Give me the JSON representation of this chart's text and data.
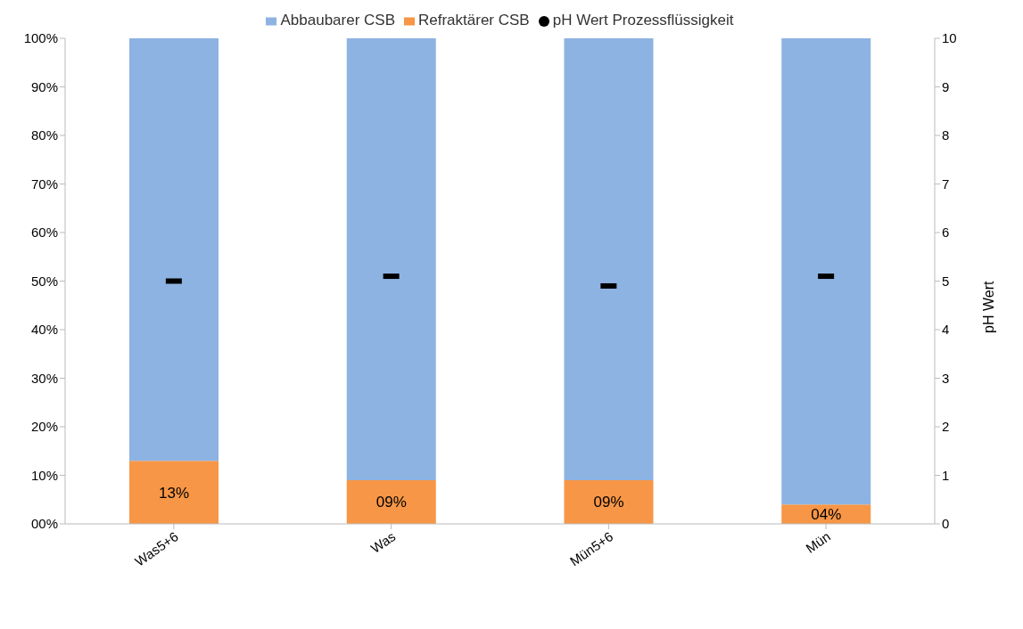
{
  "chart_data": {
    "type": "bar",
    "stacked": true,
    "categories": [
      "Was5+6",
      "Was",
      "Mün5+6",
      "Mün"
    ],
    "series": [
      {
        "name": "Refraktärer CSB",
        "color": "#f79646",
        "values": [
          13,
          9,
          9,
          4
        ],
        "value_labels": [
          "13%",
          "09%",
          "09%",
          "04%"
        ]
      },
      {
        "name": "Abbaubarer CSB",
        "color": "#8db3e2",
        "values": [
          87,
          91,
          91,
          96
        ]
      },
      {
        "name": "pH Wert Prozessflüssigkeit",
        "type": "scatter",
        "axis": "y2",
        "color": "#000000",
        "values": [
          5.0,
          5.1,
          4.9,
          5.1
        ]
      }
    ],
    "ylim": [
      0,
      100
    ],
    "yticks": [
      {
        "value": 0,
        "label": "00%"
      },
      {
        "value": 10,
        "label": "10%"
      },
      {
        "value": 20,
        "label": "20%"
      },
      {
        "value": 30,
        "label": "30%"
      },
      {
        "value": 40,
        "label": "40%"
      },
      {
        "value": 50,
        "label": "50%"
      },
      {
        "value": 60,
        "label": "60%"
      },
      {
        "value": 70,
        "label": "70%"
      },
      {
        "value": 80,
        "label": "80%"
      },
      {
        "value": 90,
        "label": "90%"
      },
      {
        "value": 100,
        "label": "100%"
      }
    ],
    "y2lim": [
      0,
      10
    ],
    "y2ticks": [
      0,
      1,
      2,
      3,
      4,
      5,
      6,
      7,
      8,
      9,
      10
    ],
    "y2label": "pH Wert",
    "legend": "top"
  }
}
